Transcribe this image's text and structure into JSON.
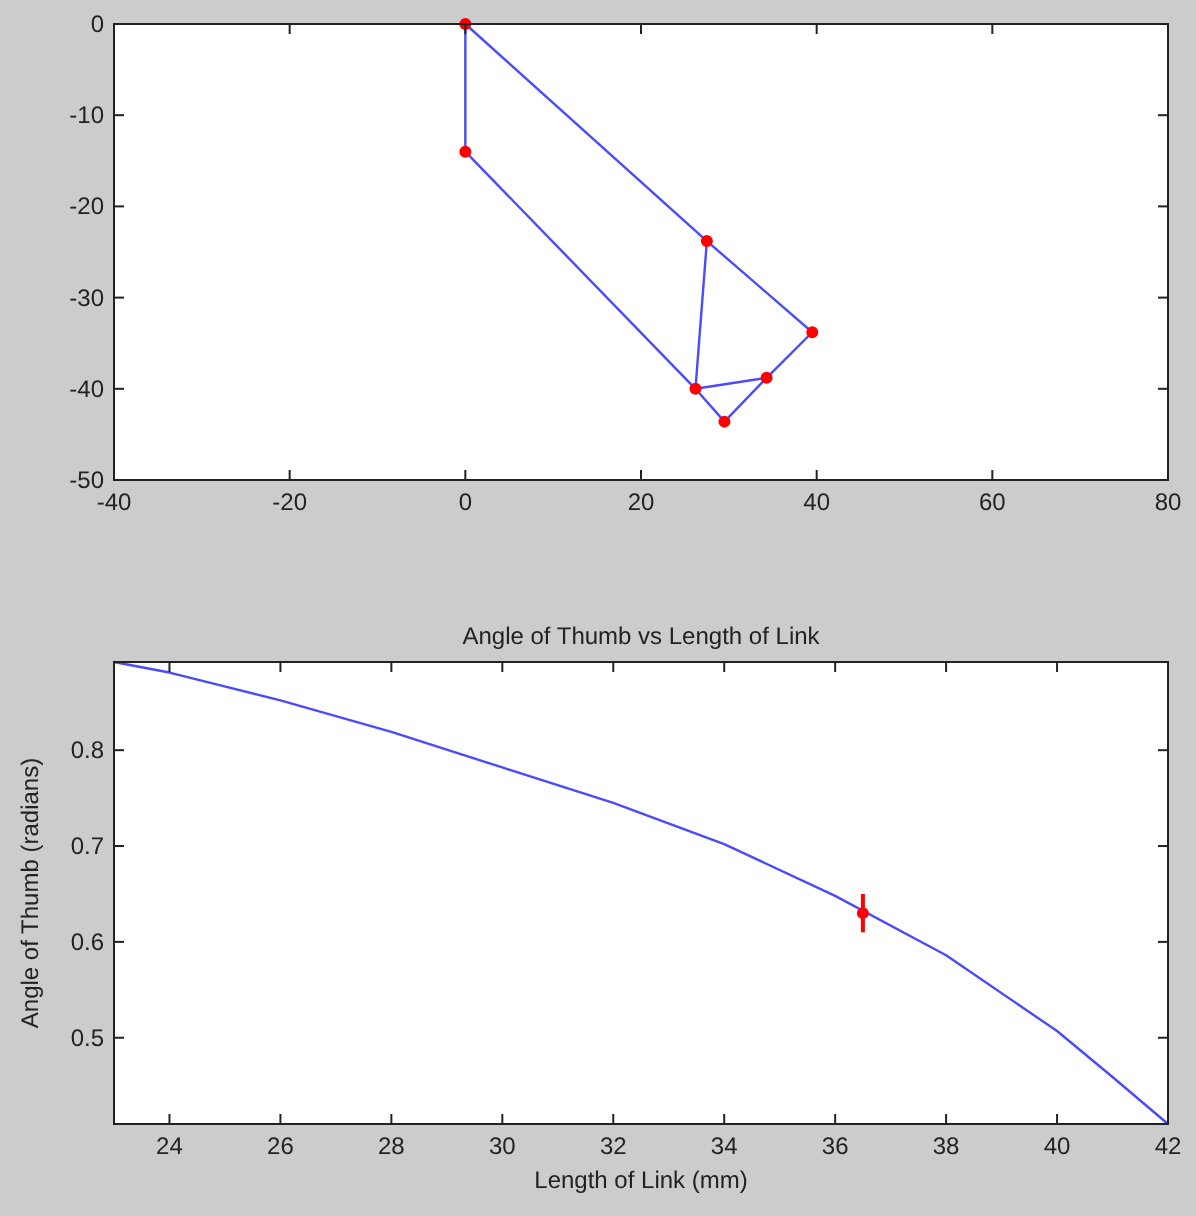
{
  "chart_data": [
    {
      "type": "line",
      "xlim": [
        -40,
        80
      ],
      "ylim": [
        -50,
        0
      ],
      "xticks": [
        -40,
        -20,
        0,
        20,
        40,
        60,
        80
      ],
      "yticks": [
        -50,
        -40,
        -30,
        -20,
        -10,
        0
      ],
      "grid": false,
      "series": [
        {
          "color": "#4a4aff",
          "marker": "none",
          "x": [
            0,
            0
          ],
          "values": [
            0,
            -14
          ]
        },
        {
          "color": "#4a4aff",
          "marker": "none",
          "x": [
            0,
            27.5
          ],
          "values": [
            0,
            -23.8
          ]
        },
        {
          "color": "#4a4aff",
          "marker": "none",
          "x": [
            27.5,
            39.5
          ],
          "values": [
            -23.8,
            -33.8
          ]
        },
        {
          "color": "#4a4aff",
          "marker": "none",
          "x": [
            0,
            26.2
          ],
          "values": [
            -14,
            -40
          ]
        },
        {
          "color": "#4a4aff",
          "marker": "none",
          "x": [
            26.2,
            27.5
          ],
          "values": [
            -40,
            -23.8
          ]
        },
        {
          "color": "#4a4aff",
          "marker": "none",
          "x": [
            26.2,
            34.3
          ],
          "values": [
            -40,
            -38.8
          ]
        },
        {
          "color": "#4a4aff",
          "marker": "none",
          "x": [
            34.3,
            39.5
          ],
          "values": [
            -38.8,
            -33.8
          ]
        },
        {
          "color": "#4a4aff",
          "marker": "none",
          "x": [
            26.2,
            29.5
          ],
          "values": [
            -40,
            -43.6
          ]
        },
        {
          "color": "#4a4aff",
          "marker": "none",
          "x": [
            29.5,
            34.3
          ],
          "values": [
            -43.6,
            -38.8
          ]
        },
        {
          "type": "scatter",
          "color": "#ff0000",
          "marker": "circle",
          "x": [
            0,
            0,
            27.5,
            39.5,
            34.3,
            29.5,
            26.2
          ],
          "values": [
            0,
            -14,
            -23.8,
            -33.8,
            -38.8,
            -43.6,
            -40
          ]
        }
      ]
    },
    {
      "type": "line",
      "title": "Angle of Thumb vs Length of Link",
      "xlabel": "Length of Link (mm)",
      "ylabel": "Angle of Thumb (radians)",
      "xlim": [
        23,
        42
      ],
      "ylim": [
        0.41,
        0.892
      ],
      "xticks": [
        24,
        26,
        28,
        30,
        32,
        34,
        36,
        38,
        40,
        42
      ],
      "yticks": [
        0.5,
        0.6,
        0.7,
        0.8
      ],
      "grid": false,
      "series": [
        {
          "color": "#4a4aff",
          "marker": "none",
          "x": [
            23,
            24,
            26,
            28,
            30,
            32,
            34,
            36,
            38,
            40,
            41,
            42
          ],
          "values": [
            0.892,
            0.881,
            0.852,
            0.819,
            0.782,
            0.745,
            0.702,
            0.648,
            0.586,
            0.507,
            0.459,
            0.41
          ]
        },
        {
          "type": "scatter",
          "color": "#ff0000",
          "marker": "circle",
          "x": [
            36.5
          ],
          "values": [
            0.63
          ],
          "errors": [
            0.02
          ]
        }
      ]
    }
  ]
}
